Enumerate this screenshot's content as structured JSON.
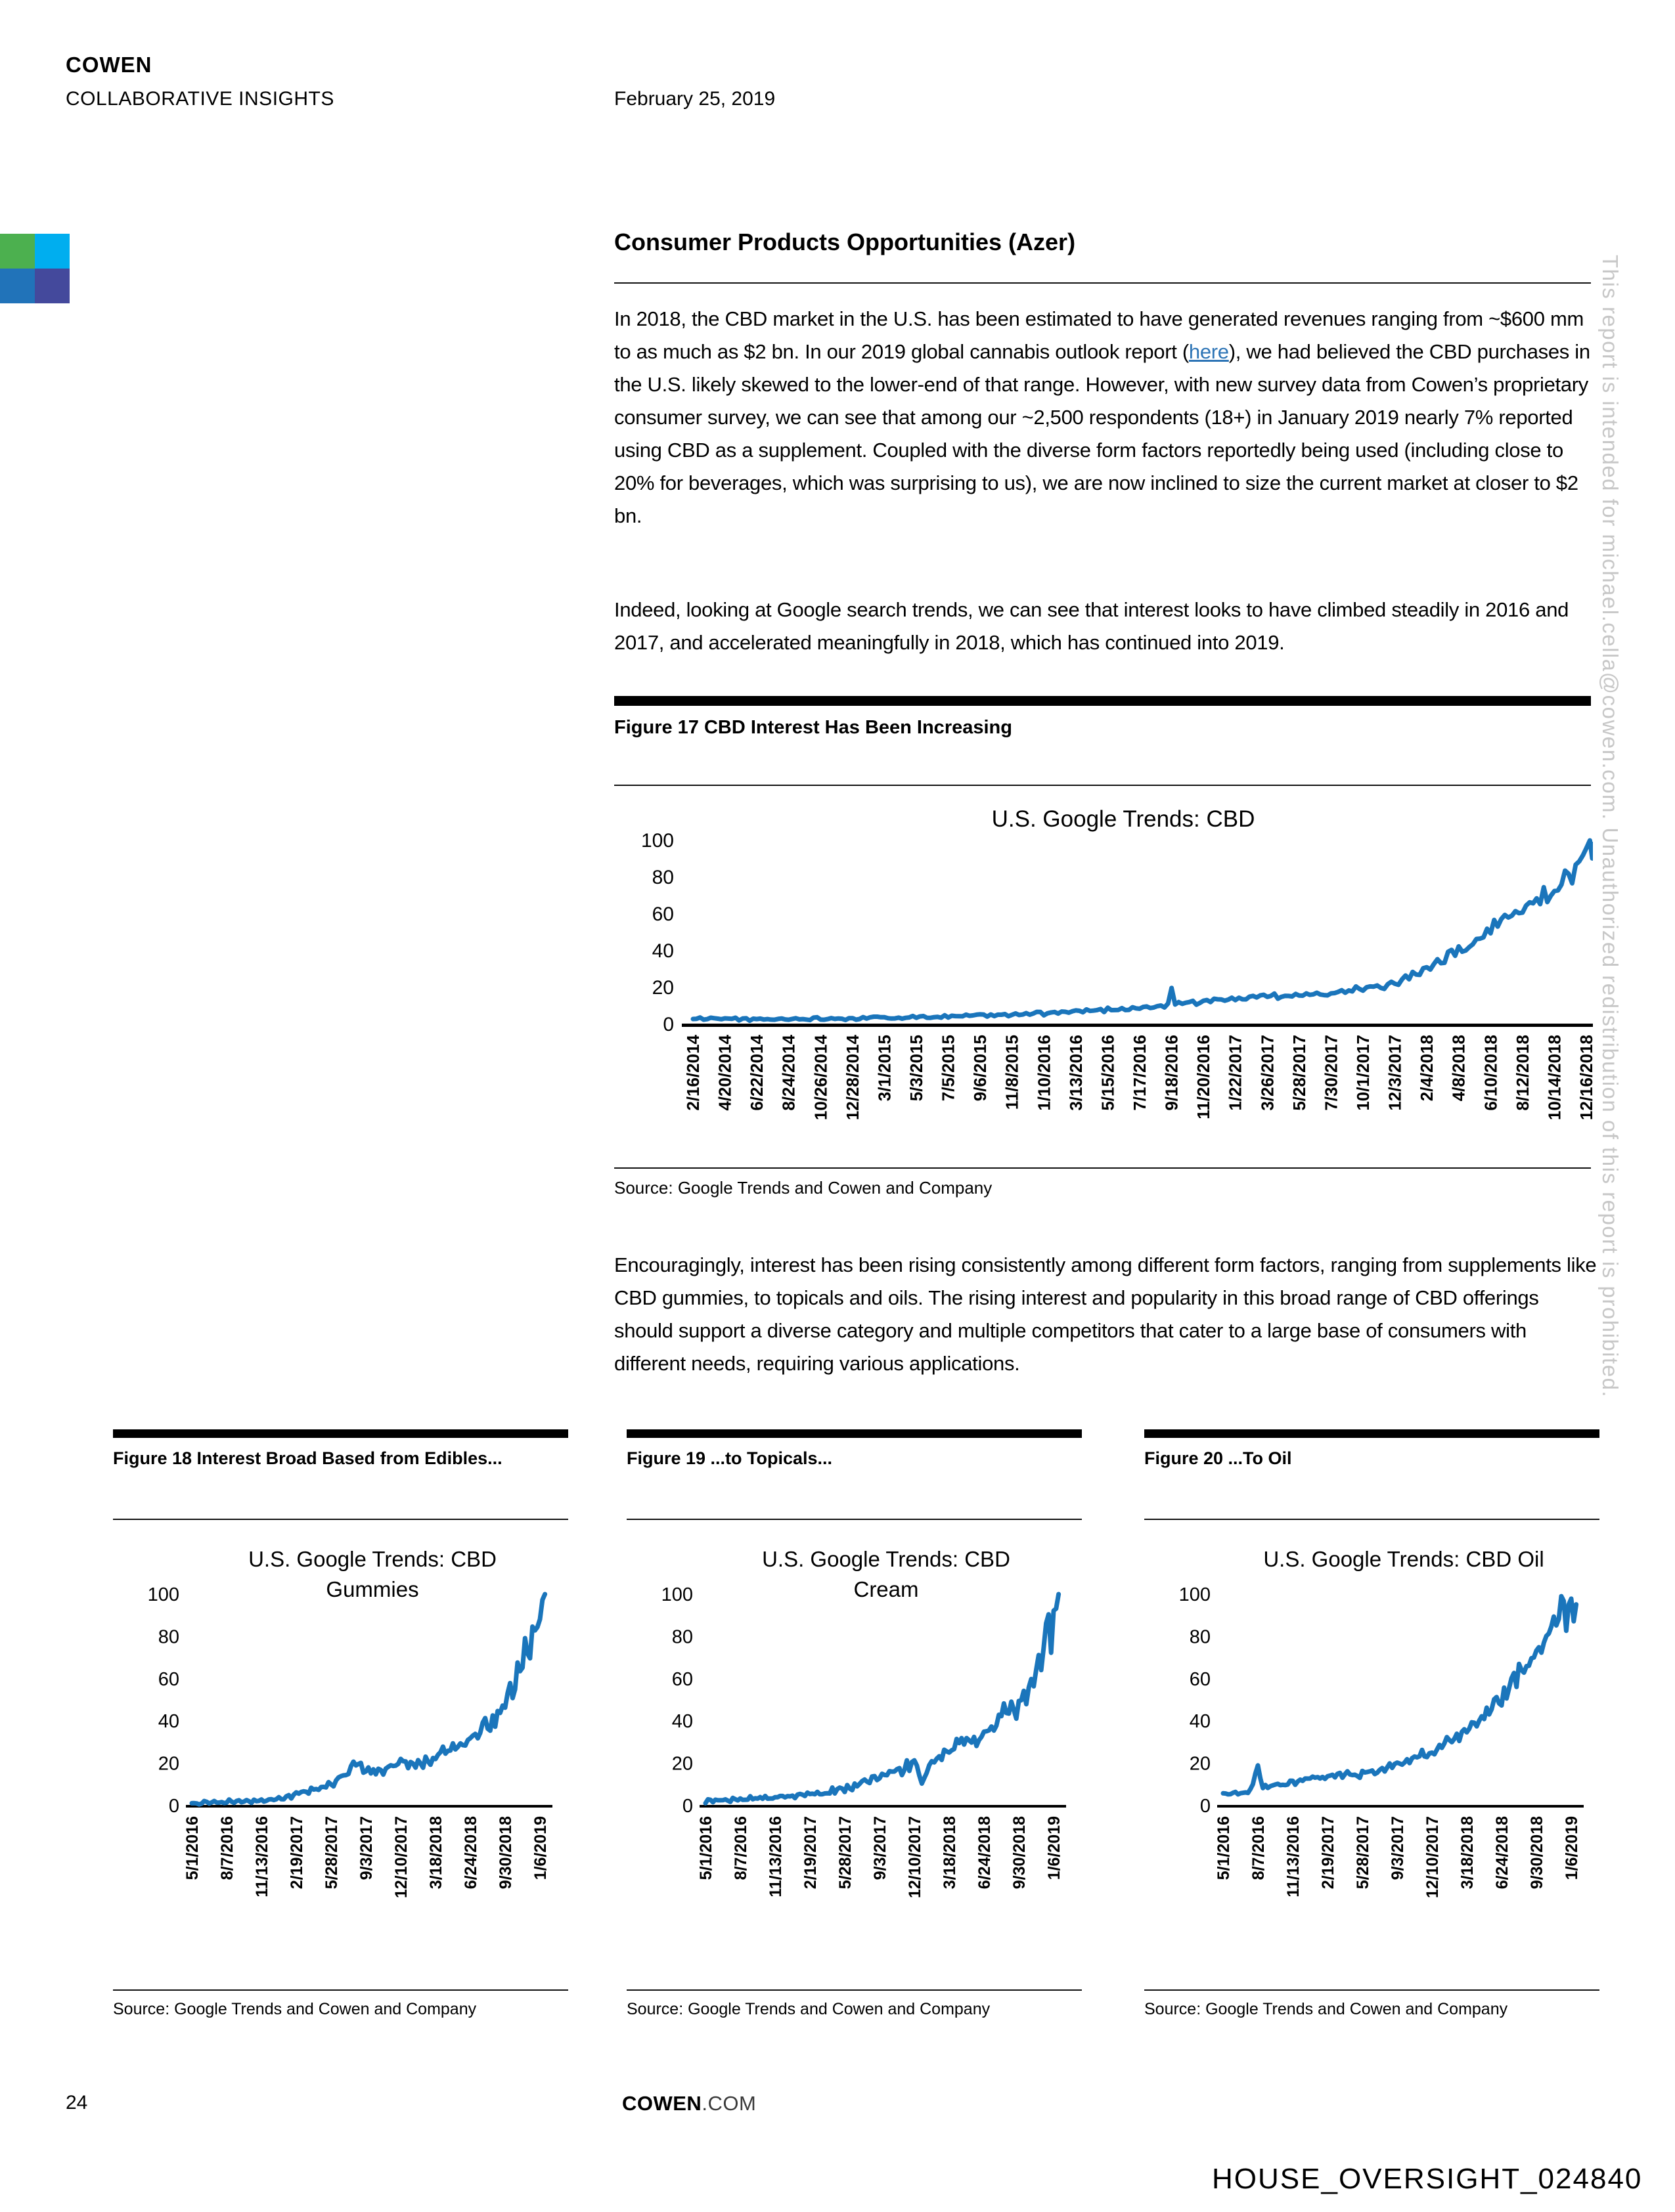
{
  "page": {
    "header": {
      "brand": "COWEN",
      "division": "COLLABORATIVE INSIGHTS",
      "date": "February 25, 2019"
    },
    "logo_colors": [
      "#4cb04f",
      "#00aeef",
      "#2173b9",
      "#44499c"
    ],
    "watermark": "This report is intended for michael.cella@cowen.com. Unauthorized redistribution of this report is prohibited.",
    "footer": {
      "page_number": "24",
      "site_bold": "COWEN",
      "site_rest": ".COM"
    },
    "stamp": "HOUSE_OVERSIGHT_024840"
  },
  "article": {
    "title": "Consumer Products Opportunities (Azer)",
    "p1_before": "In 2018, the CBD market in the U.S. has been estimated to have generated revenues ranging from ~$600 mm to as much as $2 bn. In our 2019 global cannabis outlook report (",
    "p1_link": "here",
    "p1_after": "), we had believed the CBD purchases in the U.S. likely skewed to the lower-end of that range. However, with new survey data from Cowen’s proprietary consumer survey, we can see that among our ~2,500 respondents (18+) in January 2019 nearly 7% reported using CBD as a supplement. Coupled with the diverse form factors reportedly being used (including close to 20% for beverages, which was surprising to us), we are now inclined to size the current market at closer to $2 bn.",
    "p2": "Indeed, looking at Google search trends, we can see that interest looks to have climbed steadily in 2016 and 2017, and accelerated meaningfully in 2018, which has continued into 2019.",
    "p3": "Encouragingly, interest has been rising consistently among different form factors, ranging from supplements like CBD gummies, to topicals and oils. The rising interest and popularity in this broad range of CBD offerings should support a diverse category and multiple competitors that cater to a large base of consumers with different needs, requiring various applications."
  },
  "theme": {
    "line_color": "#1a75bb",
    "axis_color": "#000000"
  },
  "chart_data": [
    {
      "type": "line",
      "id": "cbd",
      "figure_label": "Figure 17 CBD Interest Has Been Increasing",
      "title_lines": [
        "U.S. Google Trends: CBD"
      ],
      "source": "Source: Google Trends and Cowen and Company",
      "ylim": [
        0,
        100
      ],
      "yticks": [
        0,
        20,
        40,
        60,
        80,
        100
      ],
      "grid": false,
      "legend": false,
      "x_tick_labels": [
        "2/16/2014",
        "4/20/2014",
        "6/22/2014",
        "8/24/2014",
        "10/26/2014",
        "12/28/2014",
        "3/1/2015",
        "5/3/2015",
        "7/5/2015",
        "9/6/2015",
        "11/8/2015",
        "1/10/2016",
        "3/13/2016",
        "5/15/2016",
        "7/17/2016",
        "9/18/2016",
        "11/20/2016",
        "1/22/2017",
        "3/26/2017",
        "5/28/2017",
        "7/30/2017",
        "10/1/2017",
        "12/3/2017",
        "2/4/2018",
        "4/8/2018",
        "6/10/2018",
        "8/12/2018",
        "10/14/2018",
        "12/16/2018"
      ],
      "points": [
        [
          "2/16/2014",
          3
        ],
        [
          "5/4/2014",
          3
        ],
        [
          "7/6/2014",
          2.5
        ],
        [
          "9/7/2014",
          3
        ],
        [
          "12/7/2014",
          3.2
        ],
        [
          "2/1/2015",
          3.5
        ],
        [
          "5/3/2015",
          4
        ],
        [
          "8/2/2015",
          4.5
        ],
        [
          "11/8/2015",
          5
        ],
        [
          "1/10/2016",
          6
        ],
        [
          "3/13/2016",
          7
        ],
        [
          "5/15/2016",
          8
        ],
        [
          "7/17/2016",
          9
        ],
        [
          "9/11/2016",
          10
        ],
        [
          "9/18/2016",
          20
        ],
        [
          "9/25/2016",
          11
        ],
        [
          "11/20/2016",
          12.5
        ],
        [
          "1/22/2017",
          14
        ],
        [
          "3/26/2017",
          15
        ],
        [
          "5/28/2017",
          16
        ],
        [
          "7/30/2017",
          17
        ],
        [
          "10/1/2017",
          19
        ],
        [
          "12/3/2017",
          22
        ],
        [
          "1/28/2018",
          30
        ],
        [
          "3/18/2018",
          37
        ],
        [
          "5/6/2018",
          44
        ],
        [
          "6/24/2018",
          55
        ],
        [
          "8/12/2018",
          63
        ],
        [
          "9/30/2018",
          70
        ],
        [
          "11/11/2018",
          80
        ],
        [
          "12/9/2018",
          90
        ],
        [
          "1/6/2019",
          96
        ]
      ]
    },
    {
      "type": "line",
      "id": "gummies",
      "figure_label": "Figure 18 Interest Broad Based from Edibles...",
      "title_lines": [
        "U.S. Google Trends: CBD",
        "Gummies"
      ],
      "source": "Source: Google Trends and Cowen and Company",
      "ylim": [
        0,
        100
      ],
      "yticks": [
        0,
        20,
        40,
        60,
        80,
        100
      ],
      "grid": false,
      "legend": false,
      "x_tick_labels": [
        "5/1/2016",
        "8/7/2016",
        "11/13/2016",
        "2/19/2017",
        "5/28/2017",
        "9/3/2017",
        "12/10/2017",
        "3/18/2018",
        "6/24/2018",
        "9/30/2018",
        "1/6/2019"
      ],
      "points": [
        [
          "5/1/2016",
          1
        ],
        [
          "8/7/2016",
          2
        ],
        [
          "11/13/2016",
          2
        ],
        [
          "1/1/2017",
          3
        ],
        [
          "2/19/2017",
          5
        ],
        [
          "4/1/2017",
          7
        ],
        [
          "5/28/2017",
          10
        ],
        [
          "7/1/2017",
          14
        ],
        [
          "8/1/2017",
          20
        ],
        [
          "9/3/2017",
          17
        ],
        [
          "10/15/2017",
          16
        ],
        [
          "12/10/2017",
          21
        ],
        [
          "1/15/2018",
          19
        ],
        [
          "3/18/2018",
          22
        ],
        [
          "5/1/2018",
          27
        ],
        [
          "6/24/2018",
          31
        ],
        [
          "8/1/2018",
          36
        ],
        [
          "9/30/2018",
          46
        ],
        [
          "11/1/2018",
          62
        ],
        [
          "12/1/2018",
          76
        ],
        [
          "12/20/2018",
          82
        ],
        [
          "1/6/2019",
          90
        ],
        [
          "1/20/2019",
          98
        ]
      ]
    },
    {
      "type": "line",
      "id": "cream",
      "figure_label": "Figure 19 ...to Topicals...",
      "title_lines": [
        "U.S. Google Trends: CBD",
        "Cream"
      ],
      "source": "Source: Google Trends and Cowen and Company",
      "ylim": [
        0,
        100
      ],
      "yticks": [
        0,
        20,
        40,
        60,
        80,
        100
      ],
      "grid": false,
      "legend": false,
      "x_tick_labels": [
        "5/1/2016",
        "8/7/2016",
        "11/13/2016",
        "2/19/2017",
        "5/28/2017",
        "9/3/2017",
        "12/10/2017",
        "3/18/2018",
        "6/24/2018",
        "9/30/2018",
        "1/6/2019"
      ],
      "points": [
        [
          "5/1/2016",
          2
        ],
        [
          "8/7/2016",
          3
        ],
        [
          "11/13/2016",
          4
        ],
        [
          "2/19/2017",
          5
        ],
        [
          "5/28/2017",
          8
        ],
        [
          "9/3/2017",
          13
        ],
        [
          "11/1/2017",
          17
        ],
        [
          "12/10/2017",
          21
        ],
        [
          "1/1/2018",
          10
        ],
        [
          "2/1/2018",
          22
        ],
        [
          "3/18/2018",
          26
        ],
        [
          "5/1/2018",
          30
        ],
        [
          "6/24/2018",
          34
        ],
        [
          "8/1/2018",
          40
        ],
        [
          "9/30/2018",
          48
        ],
        [
          "11/1/2018",
          57
        ],
        [
          "12/1/2018",
          66
        ],
        [
          "12/16/2018",
          88
        ],
        [
          "12/23/2018",
          97
        ],
        [
          "12/30/2018",
          72
        ],
        [
          "1/6/2019",
          95
        ],
        [
          "1/20/2019",
          99
        ]
      ]
    },
    {
      "type": "line",
      "id": "oil",
      "figure_label": "Figure 20 ...To Oil",
      "title_lines": [
        "U.S. Google Trends: CBD Oil"
      ],
      "source": "Source: Google Trends and Cowen and Company",
      "ylim": [
        0,
        100
      ],
      "yticks": [
        0,
        20,
        40,
        60,
        80,
        100
      ],
      "grid": false,
      "legend": false,
      "x_tick_labels": [
        "5/1/2016",
        "8/7/2016",
        "11/13/2016",
        "2/19/2017",
        "5/28/2017",
        "9/3/2017",
        "12/10/2017",
        "3/18/2018",
        "6/24/2018",
        "9/30/2018",
        "1/6/2019"
      ],
      "points": [
        [
          "5/1/2016",
          6
        ],
        [
          "7/15/2016",
          6
        ],
        [
          "8/7/2016",
          19
        ],
        [
          "8/21/2016",
          9
        ],
        [
          "11/13/2016",
          11
        ],
        [
          "2/19/2017",
          14
        ],
        [
          "5/28/2017",
          15
        ],
        [
          "9/3/2017",
          19
        ],
        [
          "12/10/2017",
          26
        ],
        [
          "3/18/2018",
          35
        ],
        [
          "6/24/2018",
          50
        ],
        [
          "8/12/2018",
          63
        ],
        [
          "9/30/2018",
          72
        ],
        [
          "11/11/2018",
          84
        ],
        [
          "12/9/2018",
          97
        ],
        [
          "12/23/2018",
          88
        ],
        [
          "1/6/2019",
          95
        ],
        [
          "1/20/2019",
          91
        ]
      ]
    }
  ]
}
